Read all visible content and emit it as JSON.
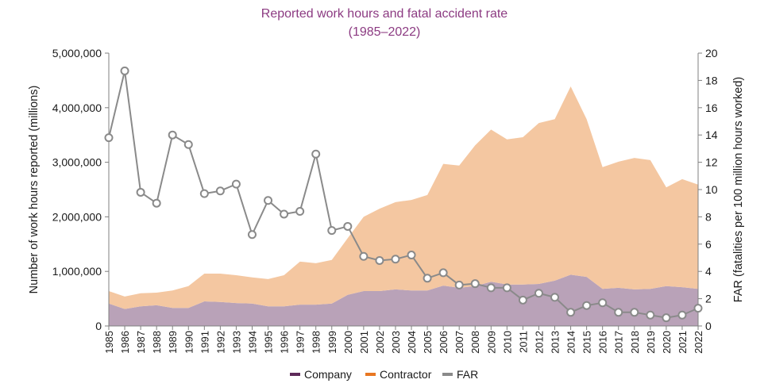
{
  "chart_data": {
    "type": "area",
    "title": "Reported work hours and fatal accident rate",
    "subtitle": "(1985–2022)",
    "xlabel": "",
    "ylabel": "Number of work hours reported (millions)",
    "y2label": "FAR (fatalities per 100 million hours worked)",
    "x": [
      "1985",
      "1986",
      "1987",
      "1988",
      "1989",
      "1990",
      "1991",
      "1992",
      "1993",
      "1994",
      "1995",
      "1996",
      "1997",
      "1998",
      "1999",
      "2000",
      "2001",
      "2002",
      "2003",
      "2004",
      "2005",
      "2006",
      "2007",
      "2008",
      "2009",
      "2010",
      "2011",
      "2012",
      "2013",
      "2014",
      "2015",
      "2016",
      "2017",
      "2018",
      "2019",
      "2020",
      "2021",
      "2022"
    ],
    "ylim": [
      0,
      5000000
    ],
    "y2lim": [
      0,
      20
    ],
    "yticks": [
      0,
      1000000,
      2000000,
      3000000,
      4000000,
      5000000
    ],
    "ytick_labels": [
      "0",
      "1,000,000",
      "2,000,000",
      "3,000,000",
      "4,000,000",
      "5,000,000"
    ],
    "y2ticks": [
      0,
      2,
      4,
      6,
      8,
      10,
      12,
      14,
      16,
      18,
      20
    ],
    "y2tick_labels": [
      "0",
      "2",
      "4",
      "6",
      "8",
      "10",
      "12",
      "14",
      "16",
      "18",
      "20"
    ],
    "grid": false,
    "series": [
      {
        "name": "Company",
        "stacked": true,
        "secondary_axis": false,
        "values": [
          410000,
          310000,
          360000,
          380000,
          330000,
          330000,
          450000,
          440000,
          420000,
          410000,
          360000,
          360000,
          390000,
          390000,
          410000,
          570000,
          640000,
          640000,
          670000,
          650000,
          650000,
          740000,
          700000,
          730000,
          810000,
          760000,
          760000,
          770000,
          830000,
          940000,
          900000,
          680000,
          700000,
          670000,
          680000,
          730000,
          710000,
          680000
        ],
        "area_color": "#b9a2b8",
        "legend_color": "#5e2a5a"
      },
      {
        "name": "Contractor",
        "stacked": true,
        "secondary_axis": false,
        "values": [
          230000,
          230000,
          240000,
          230000,
          320000,
          400000,
          510000,
          520000,
          510000,
          480000,
          500000,
          570000,
          790000,
          760000,
          800000,
          1040000,
          1360000,
          1510000,
          1600000,
          1660000,
          1750000,
          2230000,
          2240000,
          2580000,
          2790000,
          2660000,
          2700000,
          2950000,
          2960000,
          3450000,
          2890000,
          2230000,
          2310000,
          2410000,
          2360000,
          1810000,
          1980000,
          1910000
        ],
        "area_color": "#f4c7a1",
        "legend_color": "#e87722"
      },
      {
        "name": "FAR",
        "stacked": false,
        "secondary_axis": true,
        "values": [
          13.8,
          18.7,
          9.8,
          9.0,
          14.0,
          13.3,
          9.7,
          9.9,
          10.4,
          6.7,
          9.2,
          8.2,
          8.4,
          12.6,
          7.0,
          7.3,
          5.1,
          4.8,
          4.9,
          5.2,
          3.5,
          3.9,
          3.0,
          3.1,
          2.8,
          2.8,
          1.9,
          2.4,
          2.1,
          1.0,
          1.5,
          1.7,
          1.0,
          1.0,
          0.8,
          0.6,
          0.8,
          1.3
        ],
        "line_color": "#8a8a8a",
        "legend_color": "#8a8a8a"
      }
    ]
  }
}
